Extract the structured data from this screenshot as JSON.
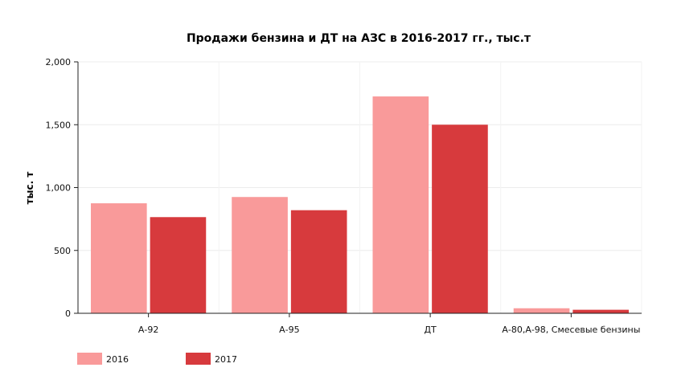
{
  "chart_data": {
    "type": "bar",
    "title": "Продажи бензина и ДТ на АЗС в 2016-2017 гг., тыс.т",
    "xlabel": "",
    "ylabel": "тыс. т",
    "categories": [
      "А-92",
      "А-95",
      "ДТ",
      "А-80,А-98, Смесевые бензины"
    ],
    "series": [
      {
        "name": "2016",
        "color": "#f99a9a",
        "values": [
          875,
          925,
          1725,
          40
        ]
      },
      {
        "name": "2017",
        "color": "#d73a3d",
        "values": [
          765,
          820,
          1500,
          28
        ]
      }
    ],
    "ylim": [
      0,
      2000
    ],
    "yticks": [
      0,
      500,
      1000,
      1500,
      2000
    ],
    "ytick_labels": [
      "0",
      "500",
      "1,000",
      "1,500",
      "2,000"
    ],
    "grid": true,
    "legend_position": "bottom-left"
  }
}
